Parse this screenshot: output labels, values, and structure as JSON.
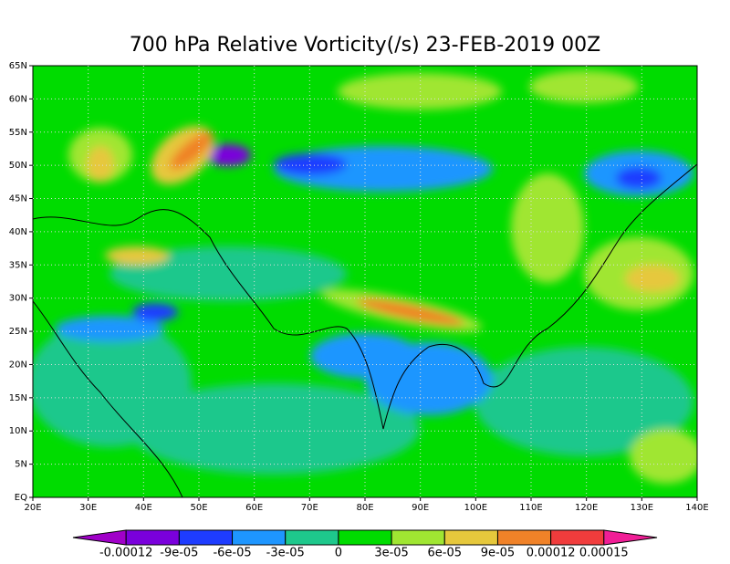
{
  "title": "700 hPa Relative Vorticity(/s) 23-FEB-2019 00Z",
  "latitude_labels": [
    "EQ",
    "5N",
    "10N",
    "15N",
    "20N",
    "25N",
    "30N",
    "35N",
    "40N",
    "45N",
    "50N",
    "55N",
    "60N",
    "65N"
  ],
  "longitude_labels": [
    "20E",
    "30E",
    "40E",
    "50E",
    "60E",
    "70E",
    "80E",
    "90E",
    "100E",
    "110E",
    "120E",
    "130E",
    "140E"
  ],
  "colorbar": {
    "labels": [
      "-0.00012",
      "-9e-05",
      "-6e-05",
      "-3e-05",
      "0",
      "3e-05",
      "6e-05",
      "9e-05",
      "0.00012",
      "0.00015"
    ],
    "colors": [
      "#a000c8",
      "#7a00dc",
      "#1e3cff",
      "#1e96ff",
      "#1ec88c",
      "#00dc00",
      "#a0e632",
      "#e6c83c",
      "#f08228",
      "#f03c3c",
      "#f01e96"
    ]
  }
}
